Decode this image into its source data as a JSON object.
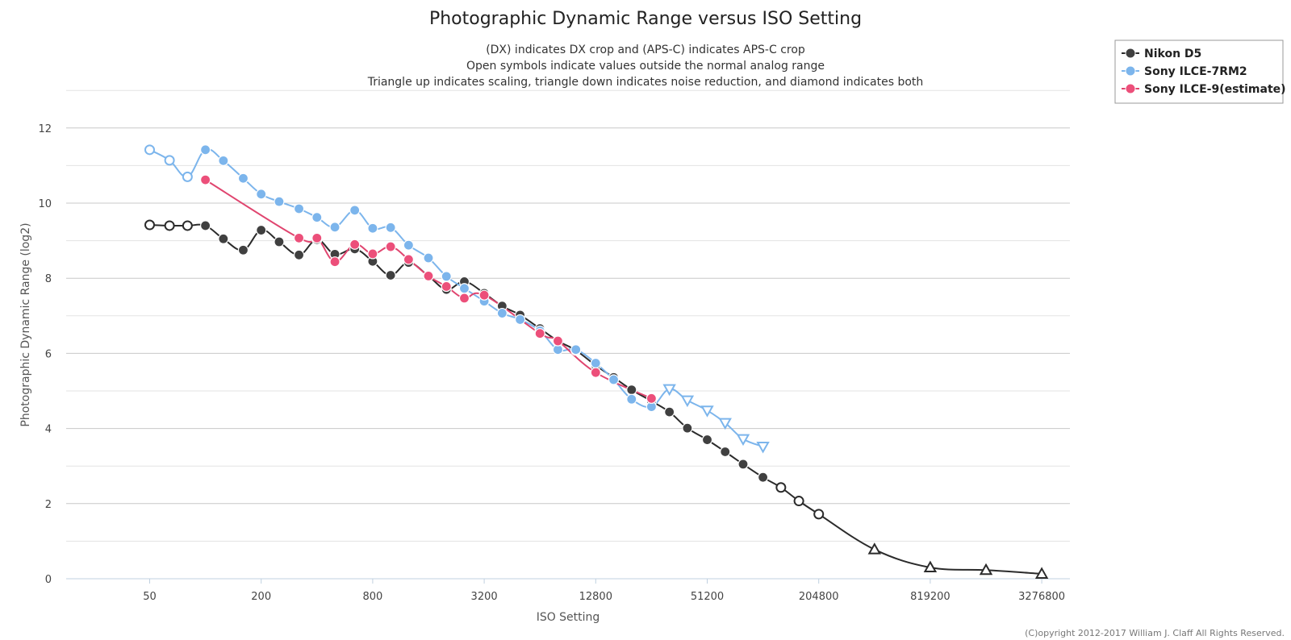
{
  "chart_data": {
    "type": "line",
    "title": "Photographic Dynamic Range versus ISO Setting",
    "subtitles": [
      "(DX) indicates DX crop and (APS-C) indicates APS-C crop",
      "Open symbols indicate values outside the normal analog range",
      "Triangle up indicates scaling, triangle down indicates noise reduction, and diamond indicates both"
    ],
    "xlabel": "ISO Setting",
    "ylabel": "Photographic Dynamic Range (log2)",
    "x_scale": "log2",
    "xlim": [
      25,
      4096000
    ],
    "ylim": [
      0,
      13
    ],
    "x_ticks": [
      50,
      200,
      800,
      3200,
      12800,
      51200,
      204800,
      819200,
      3276800
    ],
    "y_ticks": [
      0,
      2,
      4,
      6,
      8,
      10,
      12
    ],
    "grid": true,
    "legend_position": "top-right",
    "credit": "(C)opyright 2012-2017 William J. Claff All Rights Reserved.",
    "series": [
      {
        "name": "Nikon D5",
        "color": "#2b2b2b",
        "fill": "#404040",
        "points": [
          {
            "x": 50,
            "y": 9.42,
            "m": "open-circle"
          },
          {
            "x": 64,
            "y": 9.4,
            "m": "open-circle"
          },
          {
            "x": 80,
            "y": 9.4,
            "m": "open-circle"
          },
          {
            "x": 100,
            "y": 9.4,
            "m": "circle"
          },
          {
            "x": 125,
            "y": 9.05,
            "m": "circle"
          },
          {
            "x": 160,
            "y": 8.75,
            "m": "circle"
          },
          {
            "x": 200,
            "y": 9.28,
            "m": "circle"
          },
          {
            "x": 250,
            "y": 8.97,
            "m": "circle"
          },
          {
            "x": 320,
            "y": 8.62,
            "m": "circle"
          },
          {
            "x": 400,
            "y": 9.03,
            "m": "circle"
          },
          {
            "x": 500,
            "y": 8.64,
            "m": "circle"
          },
          {
            "x": 640,
            "y": 8.78,
            "m": "circle"
          },
          {
            "x": 800,
            "y": 8.45,
            "m": "circle"
          },
          {
            "x": 1000,
            "y": 8.08,
            "m": "circle"
          },
          {
            "x": 1250,
            "y": 8.42,
            "m": "circle"
          },
          {
            "x": 1600,
            "y": 8.06,
            "m": "circle"
          },
          {
            "x": 2000,
            "y": 7.7,
            "m": "circle"
          },
          {
            "x": 2500,
            "y": 7.91,
            "m": "circle"
          },
          {
            "x": 3200,
            "y": 7.6,
            "m": "circle"
          },
          {
            "x": 4000,
            "y": 7.26,
            "m": "circle"
          },
          {
            "x": 5000,
            "y": 7.02,
            "m": "circle"
          },
          {
            "x": 6400,
            "y": 6.66,
            "m": "circle"
          },
          {
            "x": 8000,
            "y": 6.33,
            "m": "circle"
          },
          {
            "x": 10000,
            "y": 6.08,
            "m": "circle"
          },
          {
            "x": 12800,
            "y": 5.68,
            "m": "circle"
          },
          {
            "x": 16000,
            "y": 5.36,
            "m": "circle"
          },
          {
            "x": 20000,
            "y": 5.03,
            "m": "circle"
          },
          {
            "x": 25600,
            "y": 4.73,
            "m": "circle"
          },
          {
            "x": 32000,
            "y": 4.44,
            "m": "circle"
          },
          {
            "x": 40000,
            "y": 4.01,
            "m": "circle"
          },
          {
            "x": 51200,
            "y": 3.7,
            "m": "circle"
          },
          {
            "x": 64000,
            "y": 3.38,
            "m": "circle"
          },
          {
            "x": 80000,
            "y": 3.05,
            "m": "circle"
          },
          {
            "x": 102400,
            "y": 2.7,
            "m": "circle"
          },
          {
            "x": 128000,
            "y": 2.43,
            "m": "open-circle"
          },
          {
            "x": 160000,
            "y": 2.07,
            "m": "open-circle"
          },
          {
            "x": 204800,
            "y": 1.72,
            "m": "open-circle"
          },
          {
            "x": 409600,
            "y": 0.78,
            "m": "triangle-up"
          },
          {
            "x": 819200,
            "y": 0.3,
            "m": "triangle-up"
          },
          {
            "x": 1638400,
            "y": 0.23,
            "m": "triangle-up"
          },
          {
            "x": 3276800,
            "y": 0.13,
            "m": "triangle-up"
          }
        ]
      },
      {
        "name": "Sony ILCE-7RM2",
        "color": "#7cb5ec",
        "fill": "#7cb5ec",
        "points": [
          {
            "x": 50,
            "y": 11.42,
            "m": "open-circle"
          },
          {
            "x": 64,
            "y": 11.14,
            "m": "open-circle"
          },
          {
            "x": 80,
            "y": 10.7,
            "m": "open-circle"
          },
          {
            "x": 100,
            "y": 11.42,
            "m": "circle"
          },
          {
            "x": 125,
            "y": 11.13,
            "m": "circle"
          },
          {
            "x": 160,
            "y": 10.66,
            "m": "circle"
          },
          {
            "x": 200,
            "y": 10.24,
            "m": "circle"
          },
          {
            "x": 250,
            "y": 10.04,
            "m": "circle"
          },
          {
            "x": 320,
            "y": 9.85,
            "m": "circle"
          },
          {
            "x": 400,
            "y": 9.62,
            "m": "circle"
          },
          {
            "x": 500,
            "y": 9.36,
            "m": "circle"
          },
          {
            "x": 640,
            "y": 9.81,
            "m": "circle"
          },
          {
            "x": 800,
            "y": 9.33,
            "m": "circle"
          },
          {
            "x": 1000,
            "y": 9.35,
            "m": "circle"
          },
          {
            "x": 1250,
            "y": 8.88,
            "m": "circle"
          },
          {
            "x": 1600,
            "y": 8.54,
            "m": "circle"
          },
          {
            "x": 2000,
            "y": 8.05,
            "m": "circle"
          },
          {
            "x": 2500,
            "y": 7.73,
            "m": "circle"
          },
          {
            "x": 3200,
            "y": 7.39,
            "m": "circle"
          },
          {
            "x": 4000,
            "y": 7.07,
            "m": "circle"
          },
          {
            "x": 5000,
            "y": 6.9,
            "m": "circle"
          },
          {
            "x": 6400,
            "y": 6.6,
            "m": "circle"
          },
          {
            "x": 8000,
            "y": 6.1,
            "m": "circle"
          },
          {
            "x": 10000,
            "y": 6.1,
            "m": "circle"
          },
          {
            "x": 12800,
            "y": 5.74,
            "m": "circle"
          },
          {
            "x": 16000,
            "y": 5.3,
            "m": "circle"
          },
          {
            "x": 20000,
            "y": 4.78,
            "m": "circle"
          },
          {
            "x": 25600,
            "y": 4.58,
            "m": "circle"
          },
          {
            "x": 32000,
            "y": 5.05,
            "m": "triangle-down"
          },
          {
            "x": 40000,
            "y": 4.75,
            "m": "triangle-down"
          },
          {
            "x": 51200,
            "y": 4.48,
            "m": "triangle-down"
          },
          {
            "x": 64000,
            "y": 4.15,
            "m": "triangle-down"
          },
          {
            "x": 80000,
            "y": 3.72,
            "m": "triangle-down"
          },
          {
            "x": 102400,
            "y": 3.52,
            "m": "triangle-down"
          }
        ]
      },
      {
        "name": "Sony ILCE-9(estimate)",
        "color": "#e0456f",
        "fill": "#ec4f7a",
        "points": [
          {
            "x": 100,
            "y": 10.62,
            "m": "circle"
          },
          {
            "x": 320,
            "y": 9.07,
            "m": "circle"
          },
          {
            "x": 400,
            "y": 9.07,
            "m": "circle"
          },
          {
            "x": 500,
            "y": 8.44,
            "m": "circle"
          },
          {
            "x": 640,
            "y": 8.9,
            "m": "circle"
          },
          {
            "x": 800,
            "y": 8.65,
            "m": "circle"
          },
          {
            "x": 1000,
            "y": 8.84,
            "m": "circle"
          },
          {
            "x": 1250,
            "y": 8.5,
            "m": "circle"
          },
          {
            "x": 1600,
            "y": 8.06,
            "m": "circle"
          },
          {
            "x": 2000,
            "y": 7.78,
            "m": "circle"
          },
          {
            "x": 2500,
            "y": 7.47,
            "m": "circle"
          },
          {
            "x": 3200,
            "y": 7.55,
            "m": "circle"
          },
          {
            "x": 6400,
            "y": 6.53,
            "m": "circle"
          },
          {
            "x": 8000,
            "y": 6.33,
            "m": "circle"
          },
          {
            "x": 12800,
            "y": 5.49,
            "m": "circle"
          },
          {
            "x": 25600,
            "y": 4.8,
            "m": "circle"
          }
        ]
      }
    ]
  }
}
